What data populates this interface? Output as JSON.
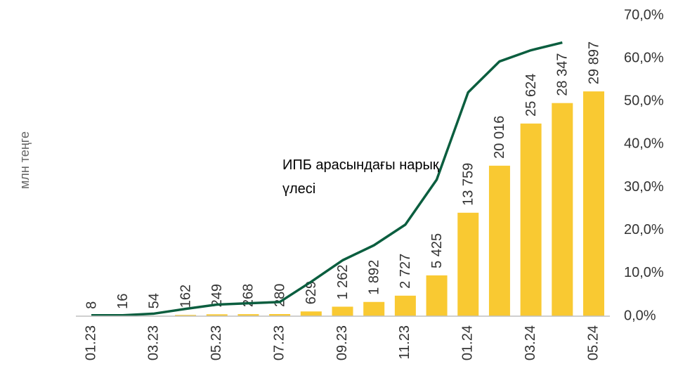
{
  "chart_data": {
    "type": "bar",
    "y_label": "млн теңге",
    "categories": [
      "01.23",
      null,
      "03.23",
      null,
      "05.23",
      null,
      "07.23",
      null,
      "09.23",
      null,
      "11.23",
      null,
      "01.24",
      null,
      "03.24",
      null,
      "05.24"
    ],
    "ylim": [
      0,
      40000
    ],
    "y2lim": [
      0,
      70
    ],
    "y2ticks": [
      {
        "value": 0,
        "label": "0,0%"
      },
      {
        "value": 10,
        "label": "10,0%"
      },
      {
        "value": 20,
        "label": "20,0%"
      },
      {
        "value": 30,
        "label": "30,0%"
      },
      {
        "value": 40,
        "label": "40,0%"
      },
      {
        "value": 50,
        "label": "50,0%"
      },
      {
        "value": 60,
        "label": "60,0%"
      },
      {
        "value": 70,
        "label": "70,0%"
      }
    ],
    "series": [
      {
        "name": "млн теңге",
        "type": "bar",
        "color": "#f9c932",
        "values": [
          8,
          16,
          54,
          162,
          249,
          268,
          280,
          629,
          1262,
          1892,
          2727,
          5425,
          13759,
          20016,
          25624,
          28347,
          29897
        ],
        "value_labels": [
          "8",
          "16",
          "54",
          "162",
          "249",
          "268",
          "280",
          "629",
          "1 262",
          "1 892",
          "2 727",
          "5 425",
          "13 759",
          "20 016",
          "25 624",
          "28 347",
          "29 897"
        ]
      },
      {
        "name": "ИПБ арасындағы нарық үлесі",
        "type": "line",
        "axis": "y2",
        "color": "#0b5e3f",
        "values": [
          0.2,
          0.2,
          0.6,
          1.7,
          2.7,
          3.0,
          3.3,
          8.0,
          13.0,
          16.5,
          21.3,
          31.8,
          52.1,
          59.3,
          61.9,
          63.7,
          null
        ]
      }
    ]
  }
}
